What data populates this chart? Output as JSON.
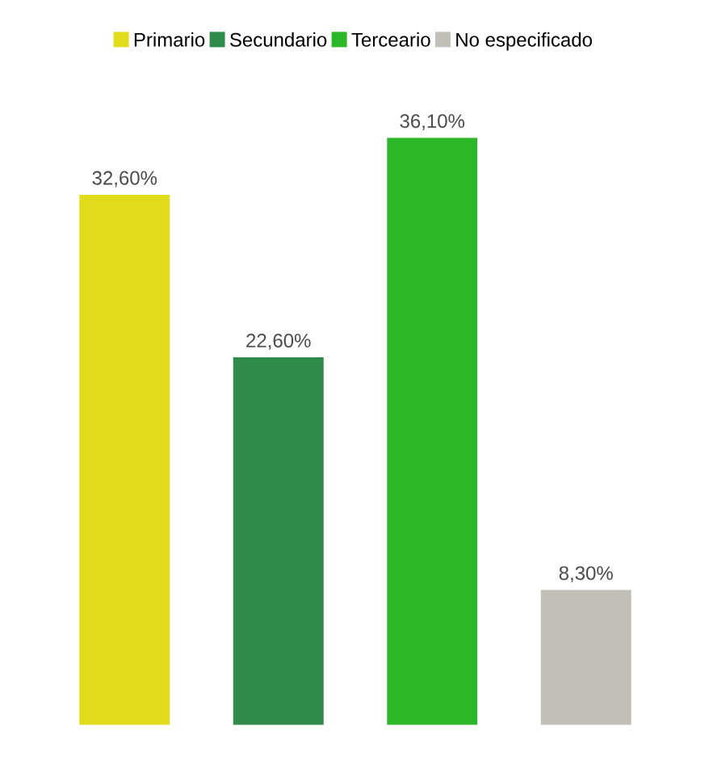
{
  "chart_data": {
    "type": "bar",
    "stacked": true,
    "categories": [
      null,
      null,
      null,
      null
    ],
    "series": [
      {
        "name": "Primario",
        "color": "#e0dc1a",
        "values": [
          32.6,
          null,
          null,
          null
        ],
        "value_labels": [
          "32,60%",
          null,
          null,
          null
        ]
      },
      {
        "name": "Secundario",
        "color": "#2e8b4a",
        "values": [
          null,
          22.6,
          null,
          null
        ],
        "value_labels": [
          null,
          "22,60%",
          null,
          null
        ]
      },
      {
        "name": "Terceario",
        "color": "#2db82a",
        "values": [
          null,
          null,
          36.1,
          null
        ],
        "value_labels": [
          null,
          null,
          "36,10%",
          null
        ]
      },
      {
        "name": "No especificado",
        "color": "#c0bfb8",
        "values": [
          null,
          null,
          null,
          8.3
        ],
        "value_labels": [
          null,
          null,
          null,
          "8,30%"
        ]
      }
    ],
    "legend": "top"
  }
}
